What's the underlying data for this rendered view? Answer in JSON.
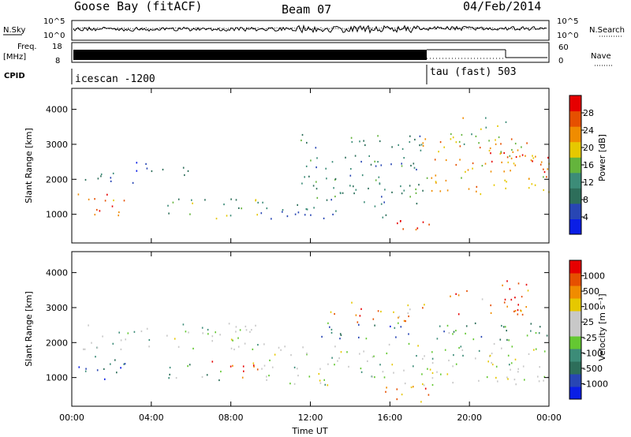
{
  "header": {
    "station": "Goose Bay (fitACF)",
    "beam": "Beam 07",
    "date": "04/Feb/2014"
  },
  "strip_labels": {
    "nsky": "N.Sky",
    "nsky_ticks": [
      "10^5",
      "10^0"
    ],
    "nsearch": "N.Search",
    "freq": "Freq.",
    "freq_unit": "[MHz]",
    "freq_ticks": [
      "18",
      "8"
    ],
    "nave": "Nave",
    "nave_ticks": [
      "60",
      "0"
    ],
    "cpid": "CPID",
    "cpid_modes": [
      "icescan -1200",
      "tau (fast) 503"
    ]
  },
  "colors": {
    "power_scale": [
      "#0a1ee6",
      "#2846b4",
      "#2d6e5a",
      "#3c8c78",
      "#64b43c",
      "#e6c800",
      "#f08c00",
      "#e65000",
      "#e60000"
    ],
    "velocity_scale": [
      "#0a1ee6",
      "#2846b4",
      "#2d6e5a",
      "#3c8c78",
      "#64c832",
      "#c8c8c8",
      "#c8c8c8",
      "#e6c800",
      "#f08c00",
      "#e65000",
      "#e60000"
    ],
    "ground_scatter": "#c8c8c8"
  },
  "chart_data": [
    {
      "type": "heatmap",
      "title": "Power",
      "xlabel": "",
      "ylabel": "Slant Range [km]",
      "x_ticks": [
        "00:00",
        "04:00",
        "08:00",
        "12:00",
        "16:00",
        "20:00",
        "00:00"
      ],
      "xlim_hours": [
        0,
        24
      ],
      "ylim_km": [
        180,
        4600
      ],
      "y_ticks": [
        1000,
        2000,
        3000,
        4000
      ],
      "colorbar": {
        "label": "Power [dB]",
        "range": [
          0,
          32
        ],
        "ticks": [
          4,
          8,
          12,
          16,
          20,
          24,
          28
        ]
      },
      "scatter_regions": [
        {
          "t": [
            0.3,
            2.8
          ],
          "r": [
            900,
            1650
          ],
          "level": 0.75
        },
        {
          "t": [
            0.5,
            3.3
          ],
          "r": [
            1900,
            2300
          ],
          "level": 0.25
        },
        {
          "t": [
            3.0,
            6.0
          ],
          "r": [
            2100,
            2500
          ],
          "level": 0.2
        },
        {
          "t": [
            4.8,
            9.8
          ],
          "r": [
            900,
            1500
          ],
          "level": 0.45
        },
        {
          "t": [
            9.0,
            11.5
          ],
          "r": [
            800,
            1200
          ],
          "level": 0.25
        },
        {
          "t": [
            11.2,
            15.8
          ],
          "r": [
            900,
            2200
          ],
          "level": 0.3
        },
        {
          "t": [
            11.5,
            17.8
          ],
          "r": [
            2300,
            3300
          ],
          "level": 0.35
        },
        {
          "t": [
            16.0,
            18.0
          ],
          "r": [
            350,
            900
          ],
          "level": 0.88
        },
        {
          "t": [
            15.0,
            17.8
          ],
          "r": [
            1300,
            2000
          ],
          "level": 0.35
        },
        {
          "t": [
            17.5,
            24.0
          ],
          "r": [
            1600,
            3200
          ],
          "level": 0.7
        },
        {
          "t": [
            21.0,
            24.0
          ],
          "r": [
            2200,
            2800
          ],
          "level": 0.85
        },
        {
          "t": [
            19.0,
            22.5
          ],
          "r": [
            3000,
            3800
          ],
          "level": 0.55
        }
      ]
    },
    {
      "type": "heatmap",
      "title": "Velocity",
      "xlabel": "Time UT",
      "ylabel": "Slant Range [km]",
      "x_ticks": [
        "00:00",
        "04:00",
        "08:00",
        "12:00",
        "16:00",
        "20:00",
        "00:00"
      ],
      "xlim_hours": [
        0,
        24
      ],
      "ylim_km": [
        180,
        4600
      ],
      "y_ticks": [
        1000,
        2000,
        3000,
        4000
      ],
      "colorbar": {
        "label": "Velocity [m s⁻¹]",
        "ticks": [
          "1000",
          "500",
          "100",
          "25",
          "-25",
          "-100",
          "-500",
          "-1000"
        ]
      },
      "scatter_regions": [
        {
          "t": [
            0.3,
            2.8
          ],
          "r": [
            900,
            1650
          ],
          "level": 0.25
        },
        {
          "t": [
            0.5,
            9.5
          ],
          "r": [
            1800,
            2600
          ],
          "level": 0.5
        },
        {
          "t": [
            4.8,
            7.5
          ],
          "r": [
            900,
            1400
          ],
          "level": 0.35
        },
        {
          "t": [
            7.0,
            10.0
          ],
          "r": [
            1000,
            1500
          ],
          "level": 0.8
        },
        {
          "t": [
            9.5,
            24.0
          ],
          "r": [
            800,
            2000
          ],
          "level": 0.5
        },
        {
          "t": [
            12.0,
            17.0
          ],
          "r": [
            2100,
            2600
          ],
          "level": 0.25
        },
        {
          "t": [
            13.0,
            17.8
          ],
          "r": [
            2600,
            3200
          ],
          "level": 0.75
        },
        {
          "t": [
            17.8,
            24.0
          ],
          "r": [
            2000,
            2600
          ],
          "level": 0.3
        },
        {
          "t": [
            19.0,
            23.0
          ],
          "r": [
            2800,
            3800
          ],
          "level": 0.8
        },
        {
          "t": [
            15.5,
            18.0
          ],
          "r": [
            300,
            900
          ],
          "level": 0.85
        }
      ]
    }
  ]
}
